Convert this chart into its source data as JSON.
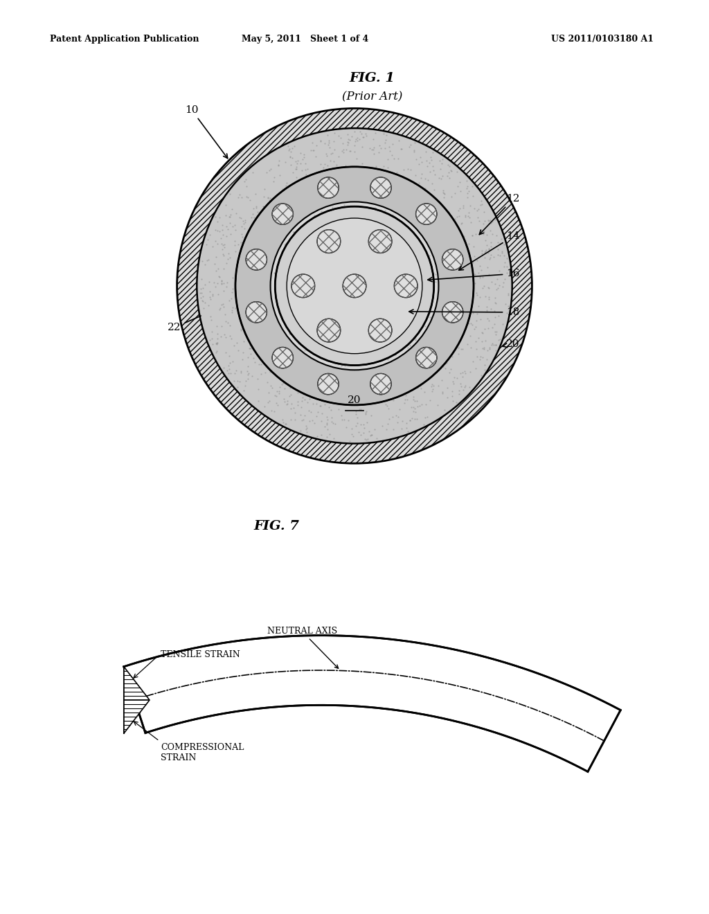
{
  "header_left": "Patent Application Publication",
  "header_mid": "May 5, 2011   Sheet 1 of 4",
  "header_right": "US 2011/0103180 A1",
  "fig1_title": "FIG. 1",
  "fig1_subtitle": "(Prior Art)",
  "fig7_title": "FIG. 7",
  "label_10": "10",
  "label_12": "12",
  "label_14": "14",
  "label_16": "16",
  "label_18": "18",
  "label_20_right": "20",
  "label_20_center": "20",
  "label_22": "22",
  "label_neutral": "NEUTRAL AXIS",
  "label_tensile": "TENSILE STRAIN",
  "label_compress": "COMPRESSIONAL\nSTRAIN",
  "bg_color": "#ffffff",
  "line_color": "#000000",
  "fill_light": "#c8c8c8",
  "fill_medium": "#b0b0b0",
  "fill_dark": "#888888",
  "jacket_color": "#dddddd",
  "cable_color": "#e0e0e0"
}
